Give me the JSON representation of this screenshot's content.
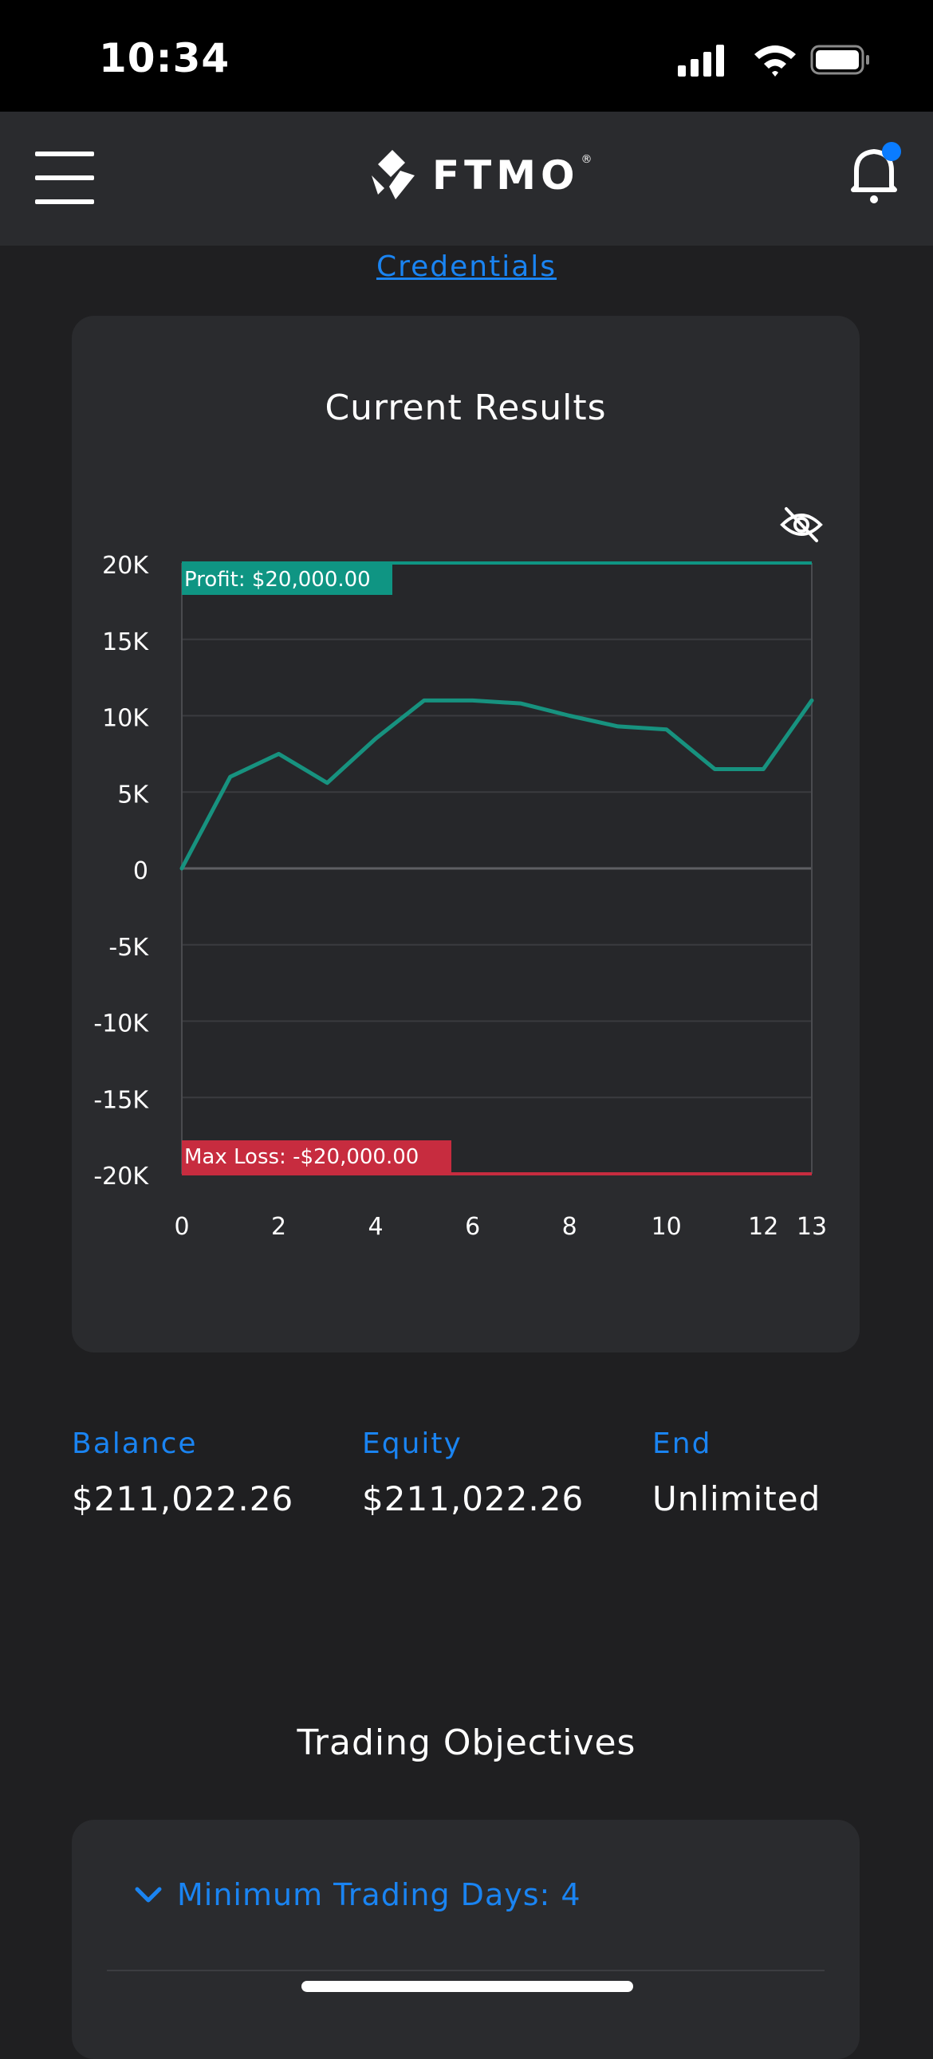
{
  "status_bar": {
    "time": "10:34"
  },
  "nav": {
    "logo_text": "FTMO",
    "logo_mark": "®",
    "notification_dot_color": "#0a7cff"
  },
  "credentials_link": "Credentials",
  "results": {
    "title": "Current Results",
    "profit_label": "Profit: $20,000.00",
    "max_loss_label": "Max Loss: -$20,000.00"
  },
  "chart_data": {
    "type": "line",
    "title": "Current Results",
    "x": [
      0,
      1,
      2,
      3,
      4,
      5,
      6,
      7,
      8,
      9,
      10,
      11,
      12,
      13
    ],
    "series": [
      {
        "values": [
          0,
          6000,
          7500,
          5600,
          8500,
          11000,
          11000,
          10800,
          10000,
          9300,
          9100,
          6500,
          6500,
          11000
        ],
        "color": "#17927f"
      }
    ],
    "ylim": [
      -20000,
      20000
    ],
    "xlim": [
      0,
      13
    ],
    "yticks": [
      20000,
      15000,
      10000,
      5000,
      0,
      -5000,
      -10000,
      -15000,
      -20000
    ],
    "ytick_labels": [
      "20K",
      "15K",
      "10K",
      "5K",
      "0",
      "-5K",
      "-10K",
      "-15K",
      "-20K"
    ],
    "xticks": [
      0,
      2,
      4,
      6,
      8,
      10,
      12,
      13
    ],
    "xtick_labels": [
      "0",
      "2",
      "4",
      "6",
      "8",
      "10",
      "12",
      "13"
    ],
    "profit_target": 20000,
    "max_loss": -20000,
    "profit_color": "#0f9583",
    "loss_color": "#c72c3f",
    "grid": true
  },
  "stats": [
    {
      "label": "Balance",
      "value": "$211,022.26"
    },
    {
      "label": "Equity",
      "value": "$211,022.26"
    },
    {
      "label": "End",
      "value": "Unlimited"
    }
  ],
  "objectives": {
    "title": "Trading Objectives",
    "items": [
      {
        "label": "Minimum Trading Days: 4"
      }
    ]
  }
}
